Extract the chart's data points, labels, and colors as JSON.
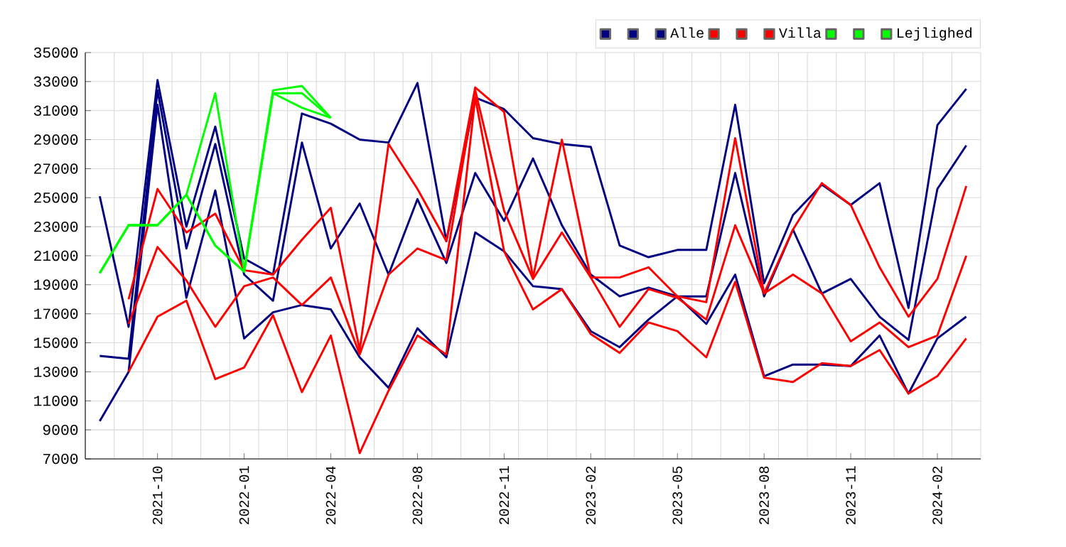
{
  "chart_data": {
    "type": "line",
    "categories": [
      null,
      null,
      "2021-10",
      null,
      null,
      "2022-01",
      null,
      null,
      "2022-04",
      null,
      null,
      "2022-08",
      null,
      null,
      "2022-11",
      null,
      null,
      "2023-02",
      null,
      null,
      "2023-05",
      null,
      null,
      "2023-08",
      null,
      null,
      "2023-11",
      null,
      null,
      "2024-02",
      null
    ],
    "series": [
      {
        "color": "#000080",
        "values": [
          25100,
          16100,
          33100,
          23000,
          29900,
          20800,
          19700,
          30800,
          30100,
          29000,
          28800,
          32900,
          22000,
          31900,
          31100,
          29100,
          28700,
          28500,
          21700,
          20900,
          21400,
          21400,
          31400,
          19100,
          23800,
          25900,
          24500,
          26000,
          17400,
          30000,
          32500
        ]
      },
      {
        "color": "#000080",
        "values": [
          14100,
          13900,
          32400,
          21500,
          28700,
          19700,
          17900,
          28800,
          21500,
          24600,
          19700,
          24900,
          20500,
          26700,
          23400,
          27700,
          23100,
          19700,
          18200,
          18800,
          18200,
          18200,
          26700,
          18200,
          22800,
          18400,
          19400,
          16800,
          15200,
          25600,
          28600
        ]
      },
      {
        "name": "Alle",
        "color": "#000080",
        "values": [
          9600,
          13000,
          31400,
          18100,
          25500,
          15300,
          17100,
          17600,
          17300,
          14000,
          11900,
          16000,
          14000,
          22600,
          21300,
          18900,
          18700,
          15800,
          14700,
          16600,
          18200,
          16300,
          19700,
          12700,
          13500,
          13500,
          13400,
          15500,
          11500,
          15300,
          16800
        ]
      },
      {
        "color": "#ff0000",
        "values": [
          null,
          18000,
          25600,
          22600,
          23900,
          20000,
          19700,
          22100,
          24300,
          14500,
          28700,
          25600,
          22000,
          32600,
          30900,
          19500,
          29000,
          19500,
          19500,
          20200,
          18200,
          17800,
          29100,
          18400,
          22800,
          26000,
          24500,
          20200,
          16800,
          19400,
          25800
        ]
      },
      {
        "color": "#ff0000",
        "values": [
          null,
          16300,
          21600,
          19300,
          16100,
          18900,
          19500,
          17600,
          19500,
          14200,
          19700,
          21500,
          20700,
          32400,
          24100,
          19400,
          22600,
          19500,
          16100,
          18700,
          18100,
          16600,
          23100,
          18400,
          19700,
          18400,
          15100,
          16400,
          14700,
          15500,
          21000
        ]
      },
      {
        "name": "Villa",
        "color": "#ff0000",
        "values": [
          null,
          13000,
          16800,
          17900,
          12500,
          13300,
          16900,
          11600,
          15500,
          7400,
          11700,
          15500,
          14200,
          31900,
          21300,
          17300,
          18700,
          15600,
          14300,
          16400,
          15800,
          14000,
          19200,
          12600,
          12300,
          13600,
          13400,
          14500,
          11500,
          12700,
          15300
        ]
      },
      {
        "color": "#00ff00",
        "values": [
          19800,
          23100,
          23100,
          25200,
          32200,
          20000,
          32400,
          32700,
          30500,
          null,
          null,
          null,
          null,
          null,
          null,
          null,
          null,
          null,
          null,
          null,
          null,
          null,
          null,
          null,
          null,
          null,
          null,
          null,
          null,
          null,
          null
        ]
      },
      {
        "color": "#00ff00",
        "values": [
          19800,
          23100,
          23100,
          25200,
          21700,
          19900,
          32200,
          32200,
          30500,
          null,
          null,
          null,
          null,
          null,
          null,
          null,
          null,
          null,
          null,
          null,
          null,
          null,
          null,
          null,
          null,
          null,
          null,
          null,
          null,
          null,
          null
        ]
      },
      {
        "name": "Lejlighed",
        "color": "#00ff00",
        "values": [
          19800,
          23100,
          23100,
          25200,
          21700,
          19900,
          32200,
          31200,
          30500,
          null,
          null,
          null,
          null,
          null,
          null,
          null,
          null,
          null,
          null,
          null,
          null,
          null,
          null,
          null,
          null,
          null,
          null,
          null,
          null,
          null,
          null
        ]
      }
    ],
    "ylim": [
      7000,
      35000
    ],
    "yticks": [
      7000,
      9000,
      11000,
      13000,
      15000,
      17000,
      19000,
      21000,
      23000,
      25000,
      27000,
      29000,
      31000,
      33000,
      35000
    ],
    "grid": true,
    "legend": "top right",
    "marker": "none"
  }
}
